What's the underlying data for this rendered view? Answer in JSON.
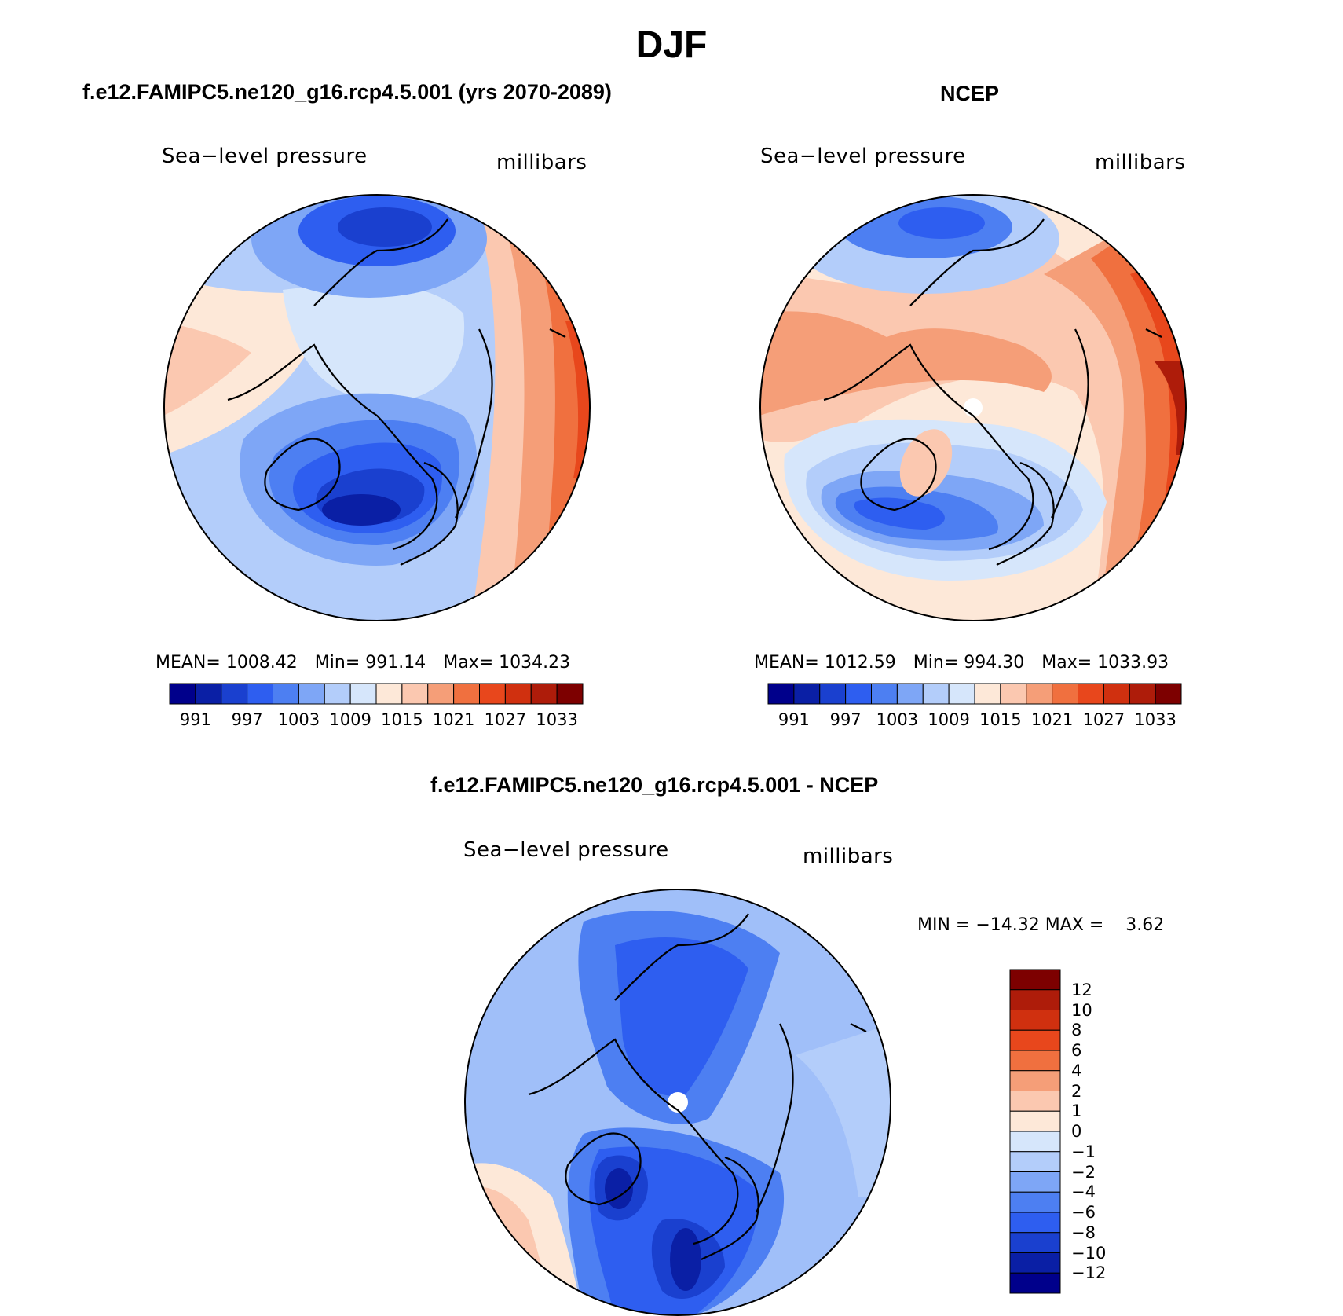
{
  "main_title": "DJF",
  "colors": {
    "abs_scale": [
      "#00008b",
      "#0a1fa5",
      "#1a40cf",
      "#2e5ef0",
      "#4d7ff2",
      "#7ea6f6",
      "#b3cdfa",
      "#d6e6fb",
      "#fde8d8",
      "#fbc8b0",
      "#f59e78",
      "#f0703f",
      "#e8471c",
      "#d0300f",
      "#ae1c0a",
      "#7d0000"
    ],
    "diff_scale": [
      "#00008b",
      "#0a1fa5",
      "#1a40cf",
      "#2e5ef0",
      "#4d7ff2",
      "#7ea6f6",
      "#b3cdfa",
      "#d6e6fb",
      "#fde8d8",
      "#fbc8b0",
      "#f59e78",
      "#f0703f",
      "#e8471c",
      "#d0300f",
      "#ae1c0a",
      "#7d0000"
    ],
    "coast": "#000000"
  },
  "chart_data": [
    {
      "type": "heatmap",
      "panel": "model",
      "title": "f.e12.FAMIPC5.ne120_g16.rcp4.5.001 (yrs 2070-2089)",
      "left_label": "Sea−level pressure",
      "right_label": "millibars",
      "stats": {
        "mean": "MEAN= 1008.42",
        "min": "Min= 991.14",
        "max": "Max= 1034.23"
      },
      "colorbar_labels": [
        "991",
        "997",
        "1003",
        "1009",
        "1015",
        "1021",
        "1027",
        "1033"
      ],
      "levels": [
        991,
        994,
        997,
        1000,
        1003,
        1006,
        1009,
        1012,
        1015,
        1018,
        1021,
        1024,
        1027,
        1030,
        1033
      ],
      "mean": 1008.42,
      "min": 991.14,
      "max": 1034.23
    },
    {
      "type": "heatmap",
      "panel": "obs",
      "title": "NCEP",
      "left_label": "Sea−level pressure",
      "right_label": "millibars",
      "stats": {
        "mean": "MEAN= 1012.59",
        "min": "Min= 994.30",
        "max": "Max= 1033.93"
      },
      "colorbar_labels": [
        "991",
        "997",
        "1003",
        "1009",
        "1015",
        "1021",
        "1027",
        "1033"
      ],
      "levels": [
        991,
        994,
        997,
        1000,
        1003,
        1006,
        1009,
        1012,
        1015,
        1018,
        1021,
        1024,
        1027,
        1030,
        1033
      ],
      "mean": 1012.59,
      "min": 994.3,
      "max": 1033.93
    },
    {
      "type": "heatmap",
      "panel": "difference",
      "title": "f.e12.FAMIPC5.ne120_g16.rcp4.5.001 - NCEP",
      "left_label": "Sea−level pressure",
      "right_label": "millibars",
      "minmax": "MIN = −14.32 MAX =    3.62",
      "min": -14.32,
      "max": 3.62,
      "colorbar_labels": [
        "12",
        "10",
        "8",
        "6",
        "4",
        "2",
        "1",
        "0",
        "−1",
        "−2",
        "−4",
        "−6",
        "−8",
        "−10",
        "−12"
      ],
      "levels": [
        12,
        10,
        8,
        6,
        4,
        2,
        1,
        0,
        -1,
        -2,
        -4,
        -6,
        -8,
        -10,
        -12
      ]
    }
  ]
}
